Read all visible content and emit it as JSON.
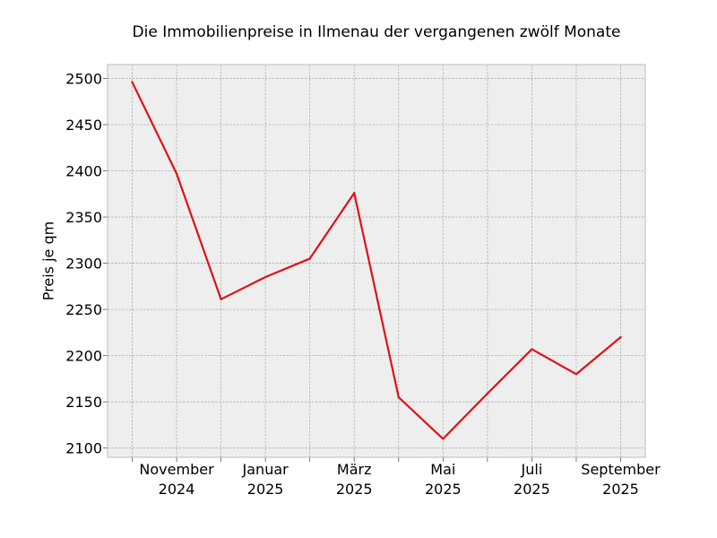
{
  "chart_data": {
    "type": "line",
    "title": "Die Immobilienpreise in Ilmenau der vergangenen zwölf Monate",
    "xlabel": "",
    "ylabel": "Preis je qm",
    "x": [
      "2024-10",
      "2024-11",
      "2024-12",
      "2025-01",
      "2025-02",
      "2025-03",
      "2025-04",
      "2025-05",
      "2025-06",
      "2025-07",
      "2025-08",
      "2025-09"
    ],
    "x_tick_labels": [
      {
        "index": 1,
        "month": "November",
        "year": "2024"
      },
      {
        "index": 3,
        "month": "Januar",
        "year": "2025"
      },
      {
        "index": 5,
        "month": "März",
        "year": "2025"
      },
      {
        "index": 7,
        "month": "Mai",
        "year": "2025"
      },
      {
        "index": 9,
        "month": "Juli",
        "year": "2025"
      },
      {
        "index": 11,
        "month": "September",
        "year": "2025"
      }
    ],
    "series": [
      {
        "values": [
          2496,
          2397,
          2261,
          2285,
          2305,
          2376,
          2155,
          2110,
          2159,
          2207,
          2180,
          2220
        ],
        "color": "#e0101a"
      }
    ],
    "yticks": [
      2100,
      2150,
      2200,
      2250,
      2300,
      2350,
      2400,
      2450,
      2500
    ],
    "ylim": [
      2090,
      2515
    ],
    "grid": true,
    "plot_background": "#eeeeee"
  }
}
